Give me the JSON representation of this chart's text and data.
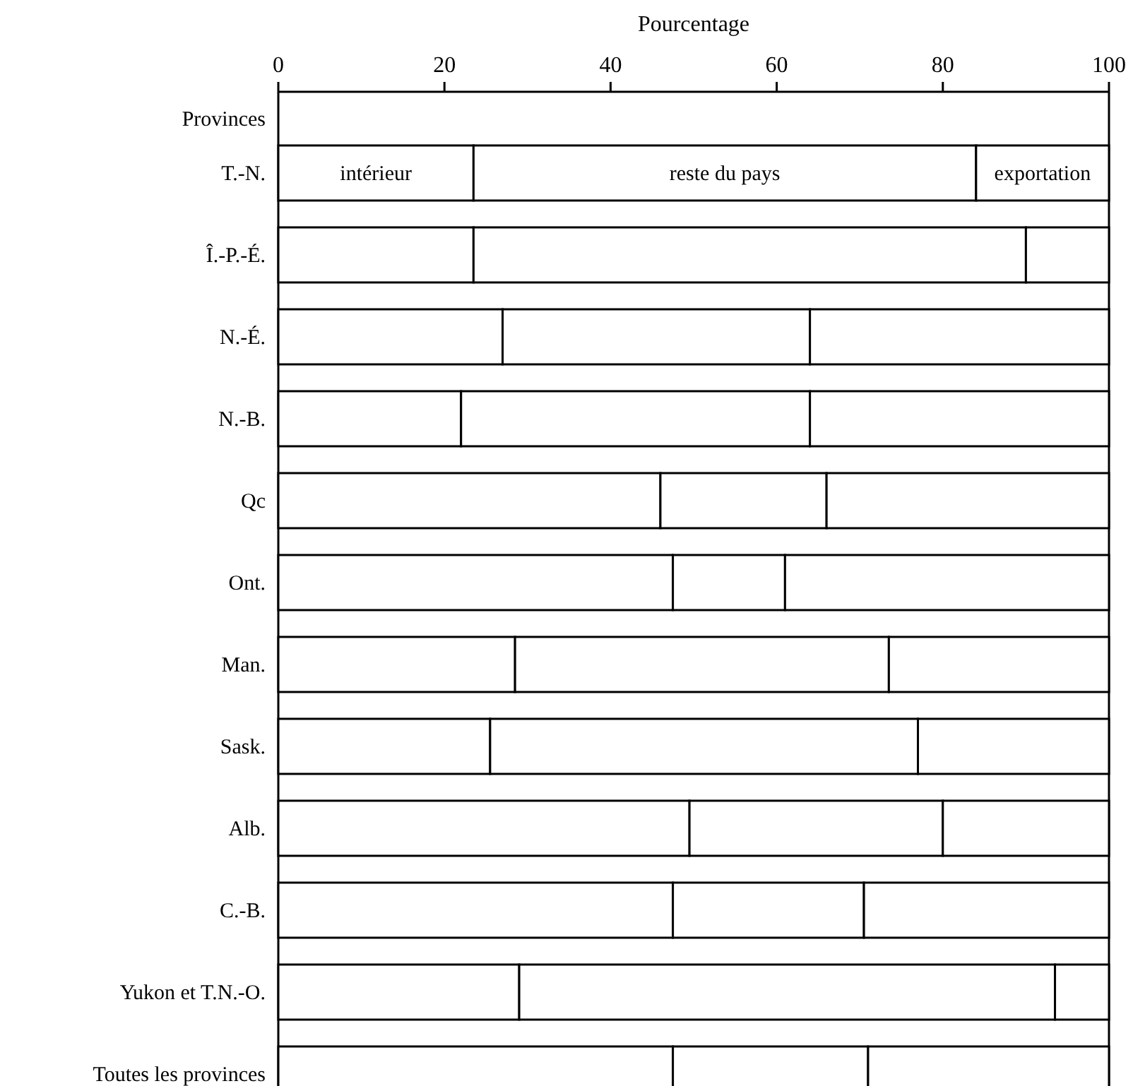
{
  "chart_data": {
    "type": "bar",
    "orientation": "horizontal",
    "stacked": true,
    "xlabel": "Pourcentage",
    "ylabel": "Provinces",
    "xlim": [
      0,
      100
    ],
    "xticks": [
      0,
      20,
      40,
      60,
      80,
      100
    ],
    "categories": [
      "T.-N.",
      "Î.-P.-É.",
      "N.-É.",
      "N.-B.",
      "Qc",
      "Ont.",
      "Man.",
      "Sask.",
      "Alb.",
      "C.-B.",
      "Yukon et T.N.-O.",
      "Toutes les provinces"
    ],
    "series": [
      {
        "name": "intérieur",
        "color": "#ffffff",
        "values": [
          23.5,
          23.5,
          27,
          22,
          46,
          47.5,
          28.5,
          25.5,
          49.5,
          47.5,
          29,
          47.5
        ]
      },
      {
        "name": "reste du pays",
        "color": "#ffffff",
        "values": [
          60.5,
          66.5,
          37,
          42,
          20,
          13.5,
          45,
          51.5,
          30.5,
          23,
          64.5,
          23.5
        ]
      },
      {
        "name": "exportation",
        "color": "#ffffff",
        "values": [
          16,
          10,
          36,
          36,
          34,
          39,
          26.5,
          23,
          20,
          29.5,
          6.5,
          29
        ]
      }
    ]
  }
}
